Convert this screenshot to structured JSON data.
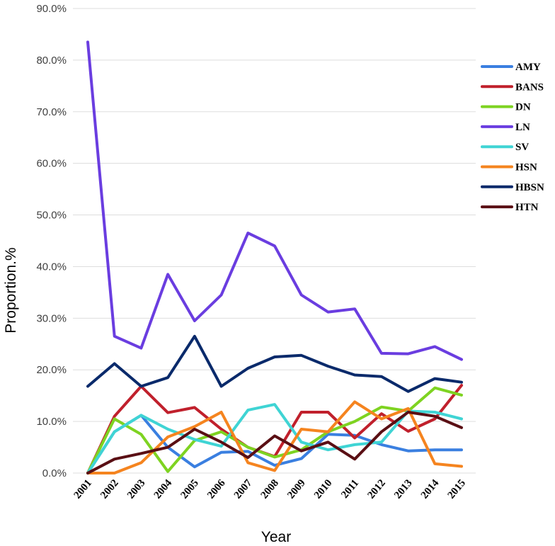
{
  "chart_data": {
    "type": "line",
    "title": "",
    "xlabel": "Year",
    "ylabel": "Proportion.%",
    "ylim": [
      0,
      90
    ],
    "yticks": [
      "0.0%",
      "10.0%",
      "20.0%",
      "30.0%",
      "40.0%",
      "50.0%",
      "60.0%",
      "70.0%",
      "80.0%",
      "90.0%"
    ],
    "grid": true,
    "legend_position": "right",
    "categories": [
      "2001",
      "2002",
      "2003",
      "2004",
      "2005",
      "2006",
      "2007",
      "2008",
      "2009",
      "2010",
      "2011",
      "2012",
      "2013",
      "2014",
      "2015"
    ],
    "series": [
      {
        "name": "AMY",
        "color": "#3a7fe0",
        "values": [
          0,
          8.0,
          11.2,
          5.0,
          1.2,
          4.0,
          4.2,
          1.5,
          2.8,
          7.5,
          7.3,
          5.5,
          4.3,
          4.5,
          4.5
        ]
      },
      {
        "name": "BANS",
        "color": "#c0202c",
        "values": [
          0,
          11.0,
          16.8,
          11.7,
          12.7,
          8.5,
          5.0,
          3.2,
          11.8,
          11.8,
          6.8,
          11.5,
          8.1,
          10.5,
          17.0
        ]
      },
      {
        "name": "DN",
        "color": "#7ed321",
        "values": [
          0,
          10.5,
          7.5,
          0.3,
          6.3,
          8.0,
          5.0,
          3.1,
          4.5,
          8.0,
          10.0,
          12.8,
          12.0,
          16.5,
          15.1
        ]
      },
      {
        "name": "LN",
        "color": "#6a3de0",
        "values": [
          83.5,
          26.5,
          24.2,
          38.5,
          29.5,
          34.5,
          46.5,
          44.0,
          34.5,
          31.2,
          31.8,
          23.2,
          23.1,
          24.5,
          22.0
        ]
      },
      {
        "name": "SV",
        "color": "#3fd4d4",
        "values": [
          0,
          8.0,
          11.2,
          8.5,
          6.5,
          5.2,
          12.2,
          13.3,
          6.0,
          4.5,
          5.5,
          6.0,
          12.0,
          11.8,
          10.5
        ]
      },
      {
        "name": "HSN",
        "color": "#f5841f",
        "values": [
          0,
          0,
          2.0,
          7.0,
          9.0,
          11.8,
          2.0,
          0.5,
          8.5,
          8.0,
          13.8,
          10.5,
          12.5,
          1.8,
          1.3
        ]
      },
      {
        "name": "HBSN",
        "color": "#0a2a6b",
        "values": [
          16.8,
          21.2,
          16.8,
          18.5,
          26.5,
          16.8,
          20.3,
          22.5,
          22.8,
          20.7,
          19.0,
          18.7,
          15.8,
          18.3,
          17.6
        ]
      },
      {
        "name": "HTN",
        "color": "#5a0f14",
        "values": [
          0,
          2.7,
          3.8,
          5.0,
          8.5,
          6.0,
          3.0,
          7.2,
          4.3,
          6.0,
          2.7,
          8.0,
          11.8,
          11.0,
          8.8
        ]
      }
    ]
  }
}
